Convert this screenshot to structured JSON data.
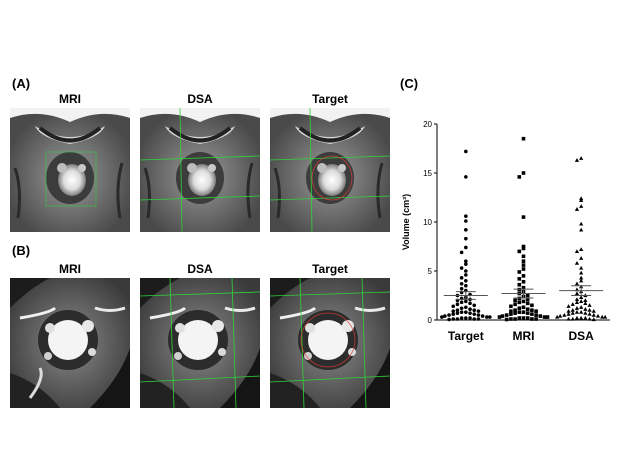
{
  "panels": {
    "a": {
      "label": "(A)",
      "titles": [
        "MRI",
        "DSA",
        "Target"
      ]
    },
    "b": {
      "label": "(B)",
      "titles": [
        "MRI",
        "DSA",
        "Target"
      ]
    },
    "c": {
      "label": "(C)"
    }
  },
  "colors": {
    "grid_green": "#2fd43a",
    "contour_red": "#e23c3c",
    "tissue_gray": "#6a6a6a"
  },
  "chart_data": {
    "type": "scatter",
    "categories": [
      "Target",
      "MRI",
      "DSA"
    ],
    "ylabel": "Volume (cm³)",
    "ylim": [
      0,
      20
    ],
    "yticks": [
      0,
      5,
      10,
      15,
      20
    ],
    "markers": [
      "circle",
      "square",
      "triangle"
    ],
    "means": [
      2.5,
      2.7,
      3.0
    ],
    "sem": [
      0.4,
      0.45,
      0.5
    ],
    "series": [
      {
        "values": [
          17.2,
          14.6,
          10.6,
          10.1,
          9.2,
          8.3,
          7.4,
          6.9,
          6.0,
          5.7,
          5.3,
          5.0,
          4.6,
          4.3,
          4.0,
          3.7,
          3.5,
          3.2,
          3.0,
          2.8,
          2.6,
          2.5,
          2.3,
          2.2,
          2.1,
          2.0,
          1.9,
          1.8,
          1.7,
          1.6,
          1.5,
          1.4,
          1.3,
          1.2,
          1.1,
          1.0,
          1.0,
          0.9,
          0.9,
          0.8,
          0.8,
          0.7,
          0.7,
          0.6,
          0.6,
          0.5,
          0.5,
          0.4,
          0.4,
          0.3,
          0.3,
          0.3,
          0.2,
          0.2,
          0.2,
          0.1,
          0.1,
          0.1,
          0.1,
          0.05
        ]
      },
      {
        "values": [
          18.5,
          15.0,
          14.6,
          10.5,
          7.5,
          7.3,
          7.0,
          6.5,
          6.0,
          5.6,
          5.2,
          4.9,
          4.5,
          4.2,
          3.9,
          3.6,
          3.3,
          3.1,
          2.9,
          2.7,
          2.5,
          2.4,
          2.2,
          2.1,
          2.0,
          1.9,
          1.8,
          1.7,
          1.6,
          1.5,
          1.4,
          1.3,
          1.2,
          1.1,
          1.0,
          1.0,
          0.9,
          0.9,
          0.8,
          0.8,
          0.7,
          0.7,
          0.6,
          0.6,
          0.5,
          0.5,
          0.4,
          0.4,
          0.3,
          0.3,
          0.3,
          0.2,
          0.2,
          0.2,
          0.1,
          0.1,
          0.1,
          0.1,
          0.05
        ]
      },
      {
        "values": [
          16.5,
          16.3,
          12.4,
          12.2,
          11.6,
          11.3,
          9.8,
          9.2,
          7.2,
          7.0,
          6.3,
          5.8,
          5.3,
          4.8,
          4.3,
          4.0,
          3.7,
          3.4,
          3.1,
          2.9,
          2.7,
          2.5,
          2.3,
          2.1,
          2.0,
          1.9,
          1.8,
          1.7,
          1.6,
          1.5,
          1.4,
          1.3,
          1.2,
          1.1,
          1.0,
          1.0,
          0.9,
          0.9,
          0.8,
          0.8,
          0.7,
          0.7,
          0.6,
          0.6,
          0.5,
          0.5,
          0.4,
          0.4,
          0.3,
          0.3,
          0.3,
          0.2,
          0.2,
          0.2,
          0.1,
          0.1,
          0.1,
          0.05
        ]
      }
    ]
  }
}
